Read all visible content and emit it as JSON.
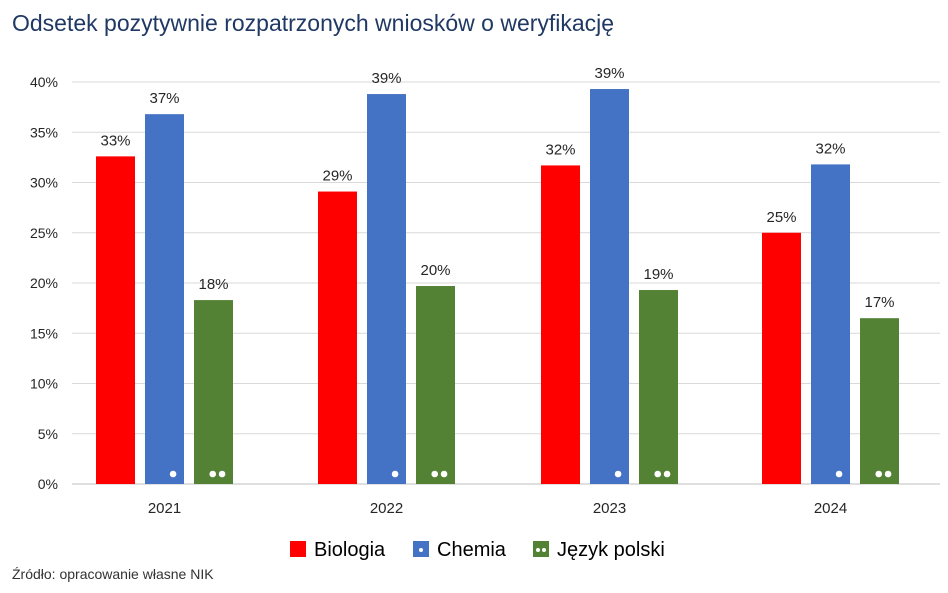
{
  "title": "Odsetek pozytywnie rozpatrzonych wniosków o weryfikację",
  "source": "Źródło: opracowanie własne NIK",
  "chart_data": {
    "type": "bar",
    "title": "Odsetek pozytywnie rozpatrzonych wniosków o weryfikację",
    "xlabel": "",
    "ylabel": "",
    "categories": [
      "2021",
      "2022",
      "2023",
      "2024"
    ],
    "ylim": [
      0,
      40
    ],
    "yticks": [
      0,
      5,
      10,
      15,
      20,
      25,
      30,
      35,
      40
    ],
    "ytick_labels": [
      "0%",
      "5%",
      "10%",
      "15%",
      "20%",
      "25%",
      "30%",
      "35%",
      "40%"
    ],
    "grid": true,
    "legend_position": "bottom",
    "series": [
      {
        "name": "Biologia",
        "color": "#ff0000",
        "pattern": "none",
        "values": [
          32.6,
          29.1,
          31.7,
          25.0
        ],
        "labels": [
          "33%",
          "29%",
          "32%",
          "25%"
        ]
      },
      {
        "name": "Chemia",
        "color": "#4472c4",
        "pattern": "one-dot",
        "values": [
          36.8,
          38.8,
          39.3,
          31.8
        ],
        "labels": [
          "37%",
          "39%",
          "39%",
          "32%"
        ]
      },
      {
        "name": "Język polski",
        "color": "#548235",
        "pattern": "two-dots",
        "values": [
          18.3,
          19.7,
          19.3,
          16.5
        ],
        "labels": [
          "18%",
          "20%",
          "19%",
          "17%"
        ]
      }
    ]
  }
}
